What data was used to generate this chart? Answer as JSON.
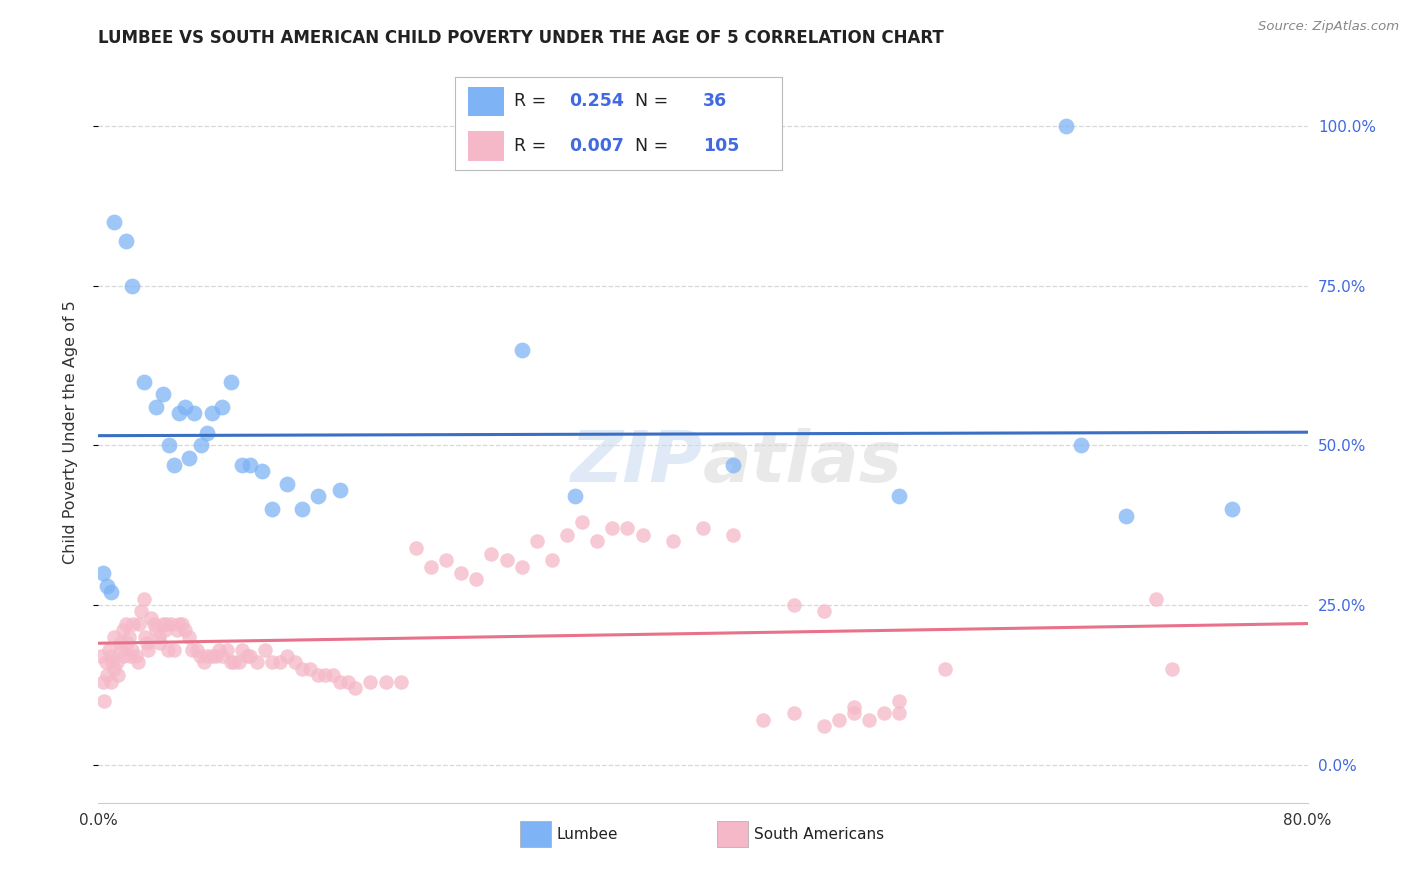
{
  "title": "LUMBEE VS SOUTH AMERICAN CHILD POVERTY UNDER THE AGE OF 5 CORRELATION CHART",
  "source": "Source: ZipAtlas.com",
  "ylabel": "Child Poverty Under the Age of 5",
  "xlim": [
    0.0,
    0.8
  ],
  "ylim": [
    -0.06,
    1.1
  ],
  "yticks": [
    0.0,
    0.25,
    0.5,
    0.75,
    1.0
  ],
  "ytick_labels": [
    "0.0%",
    "25.0%",
    "50.0%",
    "75.0%",
    "100.0%"
  ],
  "xticks": [
    0.0,
    0.1,
    0.2,
    0.3,
    0.4,
    0.5,
    0.6,
    0.7,
    0.8
  ],
  "xtick_labels_show": [
    "0.0%",
    "",
    "",
    "",
    "",
    "",
    "",
    "",
    "80.0%"
  ],
  "lumbee_R": 0.254,
  "lumbee_N": 36,
  "sa_R": 0.007,
  "sa_N": 105,
  "blue_dot_color": "#7eb3f5",
  "pink_dot_color": "#f5b8c8",
  "blue_line_color": "#3a6fc4",
  "pink_line_color": "#e8728a",
  "legend_text_color": "#4169E1",
  "background_color": "#FFFFFF",
  "grid_color": "#d8d8d8",
  "lumbee_x": [
    0.003,
    0.01,
    0.018,
    0.022,
    0.03,
    0.038,
    0.043,
    0.047,
    0.05,
    0.053,
    0.057,
    0.06,
    0.063,
    0.068,
    0.072,
    0.075,
    0.082,
    0.088,
    0.095,
    0.1,
    0.108,
    0.115,
    0.125,
    0.135,
    0.145,
    0.16,
    0.28,
    0.315,
    0.42,
    0.53,
    0.65,
    0.68,
    0.75,
    0.006,
    0.008,
    0.64
  ],
  "lumbee_y": [
    0.3,
    0.85,
    0.82,
    0.75,
    0.6,
    0.56,
    0.58,
    0.5,
    0.47,
    0.55,
    0.56,
    0.48,
    0.55,
    0.5,
    0.52,
    0.55,
    0.56,
    0.6,
    0.47,
    0.47,
    0.46,
    0.4,
    0.44,
    0.4,
    0.42,
    0.43,
    0.65,
    0.42,
    0.47,
    0.42,
    0.5,
    0.39,
    0.4,
    0.28,
    0.27,
    1.0
  ],
  "sa_x": [
    0.002,
    0.003,
    0.004,
    0.005,
    0.006,
    0.007,
    0.008,
    0.008,
    0.009,
    0.01,
    0.01,
    0.012,
    0.013,
    0.014,
    0.015,
    0.016,
    0.017,
    0.018,
    0.019,
    0.02,
    0.021,
    0.022,
    0.023,
    0.025,
    0.026,
    0.027,
    0.028,
    0.03,
    0.031,
    0.032,
    0.033,
    0.035,
    0.037,
    0.038,
    0.04,
    0.041,
    0.043,
    0.044,
    0.045,
    0.046,
    0.048,
    0.05,
    0.052,
    0.053,
    0.055,
    0.057,
    0.06,
    0.062,
    0.065,
    0.067,
    0.07,
    0.072,
    0.075,
    0.078,
    0.08,
    0.082,
    0.085,
    0.088,
    0.09,
    0.093,
    0.095,
    0.098,
    0.1,
    0.105,
    0.11,
    0.115,
    0.12,
    0.125,
    0.13,
    0.135,
    0.14,
    0.145,
    0.15,
    0.155,
    0.16,
    0.165,
    0.17,
    0.18,
    0.19,
    0.2,
    0.21,
    0.22,
    0.23,
    0.24,
    0.25,
    0.26,
    0.27,
    0.28,
    0.29,
    0.3,
    0.31,
    0.32,
    0.33,
    0.34,
    0.35,
    0.36,
    0.38,
    0.4,
    0.42,
    0.44,
    0.46,
    0.48,
    0.5,
    0.53,
    0.56
  ],
  "sa_y": [
    0.17,
    0.13,
    0.1,
    0.16,
    0.14,
    0.18,
    0.17,
    0.13,
    0.16,
    0.15,
    0.2,
    0.16,
    0.14,
    0.19,
    0.18,
    0.21,
    0.17,
    0.22,
    0.19,
    0.2,
    0.17,
    0.18,
    0.22,
    0.17,
    0.16,
    0.22,
    0.24,
    0.26,
    0.2,
    0.19,
    0.18,
    0.23,
    0.22,
    0.21,
    0.2,
    0.19,
    0.22,
    0.21,
    0.22,
    0.18,
    0.22,
    0.18,
    0.21,
    0.22,
    0.22,
    0.21,
    0.2,
    0.18,
    0.18,
    0.17,
    0.16,
    0.17,
    0.17,
    0.17,
    0.18,
    0.17,
    0.18,
    0.16,
    0.16,
    0.16,
    0.18,
    0.17,
    0.17,
    0.16,
    0.18,
    0.16,
    0.16,
    0.17,
    0.16,
    0.15,
    0.15,
    0.14,
    0.14,
    0.14,
    0.13,
    0.13,
    0.12,
    0.13,
    0.13,
    0.13,
    0.34,
    0.31,
    0.32,
    0.3,
    0.29,
    0.33,
    0.32,
    0.31,
    0.35,
    0.32,
    0.36,
    0.38,
    0.35,
    0.37,
    0.37,
    0.36,
    0.35,
    0.37,
    0.36,
    0.07,
    0.08,
    0.06,
    0.09,
    0.08,
    0.15
  ],
  "sa_extra_x": [
    0.46,
    0.48,
    0.49,
    0.5,
    0.51,
    0.52,
    0.53,
    0.7,
    0.71
  ],
  "sa_extra_y": [
    0.25,
    0.24,
    0.07,
    0.08,
    0.07,
    0.08,
    0.1,
    0.26,
    0.15
  ]
}
